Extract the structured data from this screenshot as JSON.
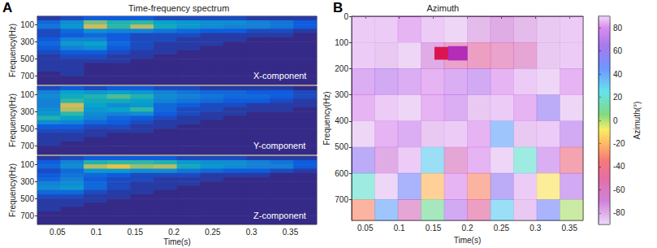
{
  "chart_data": [
    {
      "type": "spectrogram",
      "panel": "A",
      "title": "Time-frequency spectrum",
      "component": "X-component",
      "y_label": "Frequency(Hz)",
      "tick_labels": "y",
      "xlim": [
        0.024,
        0.384
      ],
      "xticks": [
        0.05,
        0.1,
        0.15,
        0.2,
        0.25,
        0.3,
        0.35
      ],
      "ylim": [
        0,
        800
      ],
      "yticks": [
        100,
        300,
        500,
        700
      ],
      "value_range": [
        0,
        1
      ],
      "t_edges": [
        0.024,
        0.054,
        0.084,
        0.114,
        0.144,
        0.174,
        0.204,
        0.234,
        0.264,
        0.294,
        0.324,
        0.354,
        0.384
      ],
      "f_edges": [
        0,
        50,
        100,
        150,
        200,
        250,
        300,
        350,
        400,
        450,
        500,
        550,
        600,
        650,
        700,
        750,
        800
      ],
      "values": [
        [
          0.05,
          0.1,
          0.15,
          0.15,
          0.15,
          0.1,
          0.1,
          0.1,
          0.1,
          0.05,
          0.05,
          0.05
        ],
        [
          0.2,
          0.35,
          0.7,
          0.55,
          0.6,
          0.45,
          0.4,
          0.35,
          0.35,
          0.3,
          0.25,
          0.15
        ],
        [
          0.25,
          0.4,
          0.85,
          0.6,
          0.8,
          0.5,
          0.4,
          0.35,
          0.3,
          0.3,
          0.25,
          0.15
        ],
        [
          0.1,
          0.2,
          0.35,
          0.3,
          0.3,
          0.25,
          0.2,
          0.15,
          0.15,
          0.1,
          0.1,
          0.05
        ],
        [
          0.1,
          0.15,
          0.2,
          0.15,
          0.1,
          0.1,
          0.1,
          0.05,
          0.05,
          0.05,
          0.05,
          0
        ],
        [
          0.15,
          0.3,
          0.3,
          0.15,
          0.1,
          0.1,
          0.05,
          0.05,
          0.05,
          0,
          0,
          0
        ],
        [
          0.2,
          0.4,
          0.45,
          0.2,
          0.1,
          0.05,
          0.05,
          0.05,
          0,
          0,
          0,
          0
        ],
        [
          0.15,
          0.3,
          0.35,
          0.15,
          0.1,
          0.05,
          0.05,
          0,
          0,
          0,
          0,
          0
        ],
        [
          0.1,
          0.15,
          0.15,
          0.1,
          0.05,
          0.05,
          0,
          0,
          0,
          0,
          0,
          0
        ],
        [
          0.05,
          0.1,
          0.1,
          0.05,
          0.05,
          0,
          0,
          0,
          0,
          0,
          0,
          0
        ],
        [
          0.05,
          0.05,
          0.05,
          0.05,
          0,
          0,
          0,
          0,
          0,
          0,
          0,
          0
        ],
        [
          0.05,
          0.05,
          0,
          0,
          0,
          0,
          0,
          0,
          0,
          0,
          0,
          0
        ],
        [
          0.05,
          0.05,
          0,
          0,
          0,
          0,
          0,
          0,
          0,
          0,
          0,
          0
        ],
        [
          0,
          0.05,
          0,
          0,
          0,
          0,
          0,
          0,
          0,
          0,
          0,
          0
        ],
        [
          0,
          0,
          0,
          0,
          0,
          0,
          0,
          0,
          0,
          0,
          0,
          0
        ],
        [
          0,
          0,
          0,
          0,
          0,
          0,
          0,
          0,
          0,
          0,
          0,
          0
        ]
      ]
    },
    {
      "type": "spectrogram",
      "component": "Y-component",
      "y_label": "Frequency(Hz)",
      "tick_labels": "y",
      "xlim": [
        0.024,
        0.384
      ],
      "xticks": [
        0.05,
        0.1,
        0.15,
        0.2,
        0.25,
        0.3,
        0.35
      ],
      "ylim": [
        0,
        800
      ],
      "yticks": [
        100,
        300,
        500,
        700
      ],
      "value_range": [
        0,
        1
      ],
      "t_edges": [
        0.024,
        0.054,
        0.084,
        0.114,
        0.144,
        0.174,
        0.204,
        0.234,
        0.264,
        0.294,
        0.324,
        0.354,
        0.384
      ],
      "f_edges": [
        0,
        50,
        100,
        150,
        200,
        250,
        300,
        350,
        400,
        450,
        500,
        550,
        600,
        650,
        700,
        750,
        800
      ],
      "values": [
        [
          0.1,
          0.15,
          0.1,
          0.15,
          0.15,
          0.1,
          0.1,
          0.05,
          0.05,
          0.05,
          0.05,
          0
        ],
        [
          0.3,
          0.45,
          0.4,
          0.45,
          0.4,
          0.3,
          0.25,
          0.2,
          0.2,
          0.15,
          0.15,
          0.1
        ],
        [
          0.35,
          0.5,
          0.55,
          0.65,
          0.55,
          0.35,
          0.3,
          0.25,
          0.2,
          0.2,
          0.15,
          0.1
        ],
        [
          0.3,
          0.6,
          0.5,
          0.5,
          0.45,
          0.3,
          0.25,
          0.2,
          0.15,
          0.15,
          0.1,
          0.05
        ],
        [
          0.3,
          0.85,
          0.45,
          0.35,
          0.4,
          0.2,
          0.15,
          0.1,
          0.1,
          0.05,
          0.05,
          0.05
        ],
        [
          0.35,
          0.8,
          0.4,
          0.45,
          0.6,
          0.2,
          0.1,
          0.1,
          0.05,
          0.05,
          0.05,
          0
        ],
        [
          0.4,
          0.6,
          0.35,
          0.3,
          0.35,
          0.15,
          0.1,
          0.05,
          0.05,
          0,
          0,
          0
        ],
        [
          0.55,
          0.45,
          0.3,
          0.2,
          0.15,
          0.1,
          0.05,
          0.05,
          0,
          0,
          0,
          0
        ],
        [
          0.35,
          0.3,
          0.2,
          0.15,
          0.1,
          0.05,
          0.05,
          0,
          0,
          0,
          0,
          0
        ],
        [
          0.15,
          0.15,
          0.1,
          0.1,
          0.05,
          0.05,
          0,
          0,
          0,
          0,
          0,
          0
        ],
        [
          0.1,
          0.1,
          0.05,
          0.05,
          0.05,
          0,
          0,
          0,
          0,
          0,
          0,
          0
        ],
        [
          0.05,
          0.05,
          0.05,
          0,
          0,
          0,
          0,
          0,
          0,
          0,
          0,
          0
        ],
        [
          0.05,
          0.05,
          0,
          0,
          0,
          0,
          0,
          0,
          0,
          0,
          0,
          0
        ],
        [
          0.05,
          0,
          0,
          0,
          0,
          0,
          0,
          0,
          0,
          0,
          0,
          0
        ],
        [
          0,
          0,
          0,
          0,
          0,
          0,
          0,
          0,
          0,
          0,
          0,
          0
        ],
        [
          0,
          0,
          0,
          0,
          0,
          0,
          0,
          0,
          0,
          0,
          0,
          0
        ]
      ]
    },
    {
      "type": "spectrogram",
      "component": "Z-component",
      "x_label": "Time(s)",
      "y_label": "Frequency(Hz)",
      "xlim": [
        0.024,
        0.384
      ],
      "xticks": [
        0.05,
        0.1,
        0.15,
        0.2,
        0.25,
        0.3,
        0.35
      ],
      "ylim": [
        0,
        800
      ],
      "yticks": [
        100,
        300,
        500,
        700
      ],
      "value_range": [
        0,
        1
      ],
      "t_edges": [
        0.024,
        0.054,
        0.084,
        0.114,
        0.144,
        0.174,
        0.204,
        0.234,
        0.264,
        0.294,
        0.324,
        0.354,
        0.384
      ],
      "f_edges": [
        0,
        50,
        100,
        150,
        200,
        250,
        300,
        350,
        400,
        450,
        500,
        550,
        600,
        650,
        700,
        750,
        800
      ],
      "values": [
        [
          0.05,
          0.1,
          0.15,
          0.15,
          0.15,
          0.15,
          0.1,
          0.1,
          0.1,
          0.05,
          0.05,
          0.05
        ],
        [
          0.15,
          0.3,
          0.55,
          0.6,
          0.6,
          0.55,
          0.4,
          0.35,
          0.35,
          0.3,
          0.25,
          0.15
        ],
        [
          0.2,
          0.35,
          0.8,
          0.9,
          0.75,
          0.8,
          0.5,
          0.4,
          0.35,
          0.3,
          0.3,
          0.15
        ],
        [
          0.1,
          0.2,
          0.4,
          0.4,
          0.35,
          0.35,
          0.25,
          0.2,
          0.15,
          0.15,
          0.1,
          0.05
        ],
        [
          0.15,
          0.25,
          0.2,
          0.15,
          0.1,
          0.1,
          0.1,
          0.05,
          0.05,
          0.05,
          0,
          0
        ],
        [
          0.2,
          0.3,
          0.15,
          0.1,
          0.1,
          0.05,
          0.05,
          0.05,
          0,
          0,
          0,
          0
        ],
        [
          0.3,
          0.35,
          0.2,
          0.1,
          0.05,
          0.05,
          0.05,
          0,
          0,
          0,
          0,
          0
        ],
        [
          0.35,
          0.4,
          0.2,
          0.1,
          0.05,
          0.05,
          0,
          0,
          0,
          0,
          0,
          0
        ],
        [
          0.2,
          0.2,
          0.1,
          0.05,
          0.05,
          0,
          0,
          0,
          0,
          0,
          0,
          0
        ],
        [
          0.1,
          0.1,
          0.05,
          0.05,
          0,
          0,
          0,
          0,
          0,
          0,
          0,
          0
        ],
        [
          0.05,
          0.05,
          0.05,
          0,
          0,
          0,
          0,
          0,
          0,
          0,
          0,
          0
        ],
        [
          0.05,
          0.05,
          0,
          0,
          0,
          0,
          0,
          0,
          0,
          0,
          0,
          0
        ],
        [
          0.05,
          0,
          0,
          0,
          0,
          0,
          0,
          0,
          0,
          0,
          0,
          0
        ],
        [
          0,
          0,
          0,
          0,
          0,
          0,
          0,
          0,
          0,
          0,
          0,
          0
        ],
        [
          0,
          0,
          0,
          0,
          0,
          0,
          0,
          0,
          0,
          0,
          0,
          0
        ],
        [
          0,
          0,
          0,
          0,
          0,
          0,
          0,
          0,
          0,
          0,
          0,
          0
        ]
      ]
    },
    {
      "type": "heatmap",
      "panel": "B",
      "title": "Azimuth",
      "x_label": "Time(s)",
      "y_label": "Frequency(Hz)",
      "xlim": [
        0.03,
        0.37
      ],
      "xticks": [
        0.05,
        0.1,
        0.15,
        0.2,
        0.25,
        0.3,
        0.35
      ],
      "ylim": [
        0,
        780
      ],
      "yticks": [
        0,
        100,
        200,
        300,
        400,
        500,
        600,
        700
      ],
      "t_edges": [
        0.03,
        0.064,
        0.098,
        0.132,
        0.166,
        0.2,
        0.234,
        0.268,
        0.302,
        0.336,
        0.37
      ],
      "f_edges": [
        0,
        100,
        200,
        300,
        400,
        500,
        600,
        700,
        800
      ],
      "values": [
        [
          85,
          85,
          80,
          85,
          -85,
          -75,
          -70,
          -75,
          -80,
          85
        ],
        [
          85,
          -80,
          -85,
          -70,
          -55,
          -50,
          -55,
          -60,
          -80,
          85
        ],
        [
          75,
          70,
          75,
          80,
          75,
          70,
          80,
          85,
          -85,
          80
        ],
        [
          80,
          85,
          -85,
          80,
          75,
          -80,
          85,
          80,
          60,
          -85
        ],
        [
          -85,
          80,
          75,
          -80,
          85,
          80,
          40,
          -80,
          85,
          70
        ],
        [
          60,
          -70,
          85,
          30,
          -60,
          80,
          -85,
          20,
          75,
          -40
        ],
        [
          20,
          -85,
          50,
          -20,
          80,
          -30,
          60,
          85,
          -10,
          70
        ],
        [
          -30,
          40,
          -60,
          10,
          70,
          -50,
          30,
          -80,
          50,
          0
        ]
      ],
      "highlighted": [
        {
          "t": [
            0.152,
            0.172
          ],
          "f": [
            118,
            165
          ],
          "azimuth": -45
        },
        {
          "t": [
            0.172,
            0.2
          ],
          "f": [
            115,
            168
          ],
          "azimuth": -68
        }
      ],
      "colorbar": {
        "label": "Azimuth(°)",
        "range": [
          -90,
          90
        ],
        "ticks": [
          -80,
          -60,
          -40,
          -20,
          0,
          20,
          40,
          60,
          80
        ]
      }
    }
  ]
}
